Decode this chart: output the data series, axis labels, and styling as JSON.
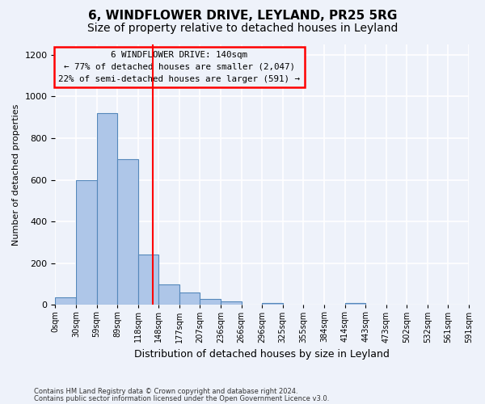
{
  "title1": "6, WINDFLOWER DRIVE, LEYLAND, PR25 5RG",
  "title2": "Size of property relative to detached houses in Leyland",
  "xlabel": "Distribution of detached houses by size in Leyland",
  "ylabel": "Number of detached properties",
  "bin_labels": [
    "0sqm",
    "30sqm",
    "59sqm",
    "89sqm",
    "118sqm",
    "148sqm",
    "177sqm",
    "207sqm",
    "236sqm",
    "266sqm",
    "296sqm",
    "325sqm",
    "355sqm",
    "384sqm",
    "414sqm",
    "443sqm",
    "473sqm",
    "502sqm",
    "532sqm",
    "561sqm",
    "591sqm"
  ],
  "bar_heights": [
    35,
    600,
    920,
    700,
    240,
    100,
    60,
    30,
    15,
    0,
    10,
    0,
    0,
    0,
    10,
    0,
    0,
    0,
    0,
    0
  ],
  "bar_color": "#aec6e8",
  "bar_edge_color": "#5588bb",
  "ylim": [
    0,
    1250
  ],
  "yticks": [
    0,
    200,
    400,
    600,
    800,
    1000,
    1200
  ],
  "red_line_x": 4.733,
  "annotation_text": "6 WINDFLOWER DRIVE: 140sqm\n← 77% of detached houses are smaller (2,047)\n22% of semi-detached houses are larger (591) →",
  "annotation_box_color": "#ff0000",
  "footer1": "Contains HM Land Registry data © Crown copyright and database right 2024.",
  "footer2": "Contains public sector information licensed under the Open Government Licence v3.0.",
  "bg_color": "#eef2fa",
  "grid_color": "#ffffff",
  "title1_fontsize": 11,
  "title2_fontsize": 10
}
